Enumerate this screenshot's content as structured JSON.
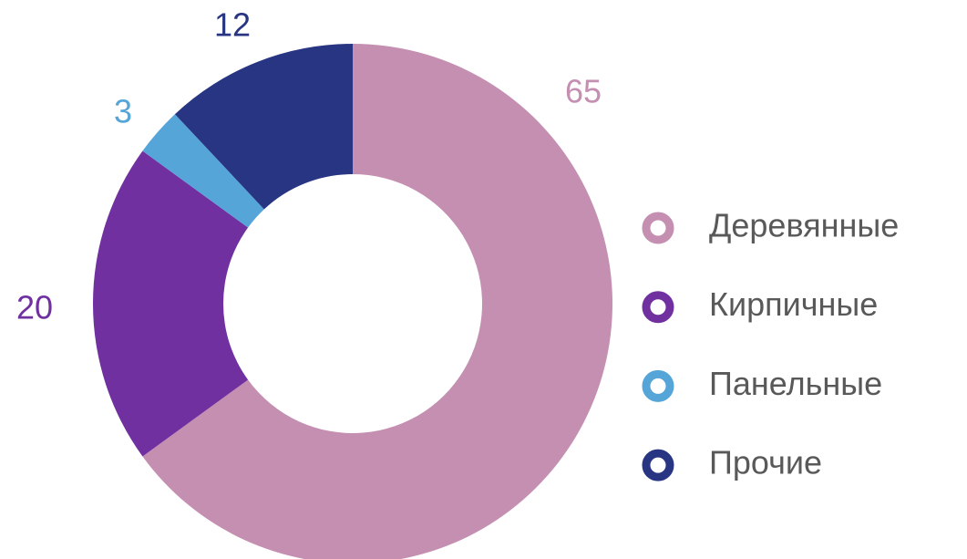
{
  "chart_data": {
    "type": "donut",
    "categories": [
      "Деревянные",
      "Кирпичные",
      "Панельные",
      "Прочие"
    ],
    "values": [
      65,
      20,
      3,
      12
    ],
    "colors": [
      "#c48fb1",
      "#7030a0",
      "#56a5d9",
      "#283583"
    ],
    "legend": "right"
  }
}
